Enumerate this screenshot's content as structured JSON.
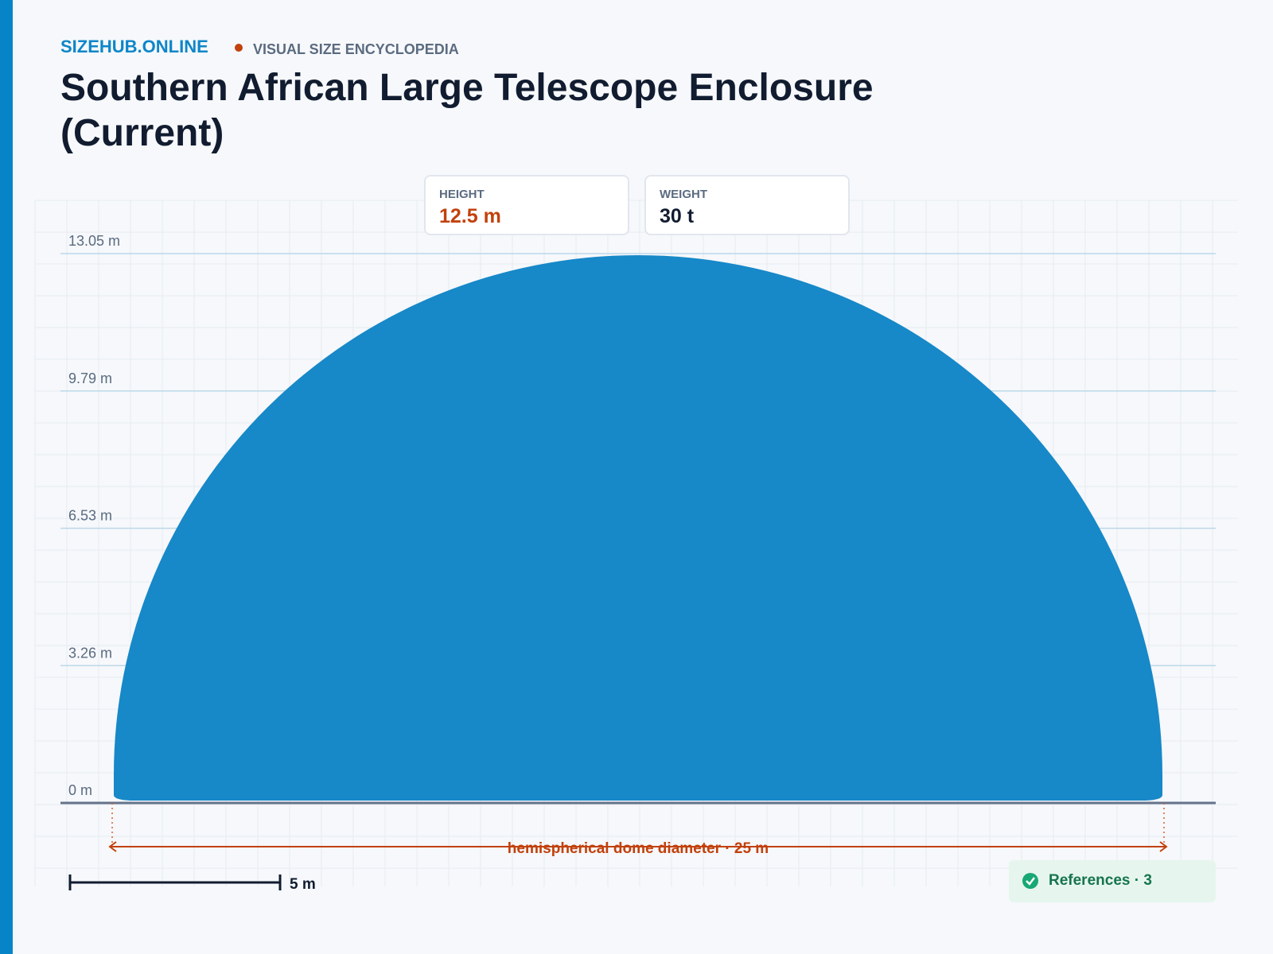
{
  "header": {
    "brand": "SIZEHUB.ONLINE",
    "tagline": "VISUAL SIZE ENCYCLOPEDIA"
  },
  "title": "Southern African Large Telescope Enclosure (Current)",
  "stats": [
    {
      "label": "HEIGHT",
      "value": "12.5 m"
    },
    {
      "label": "WEIGHT",
      "value": "30 t"
    }
  ],
  "levels": [
    "13.05 m",
    "9.79 m",
    "6.53 m",
    "3.26 m",
    "0 m"
  ],
  "dimension": "hemispherical dome diameter · 25 m",
  "scale_bar": "5 m",
  "references": "References · 3"
}
